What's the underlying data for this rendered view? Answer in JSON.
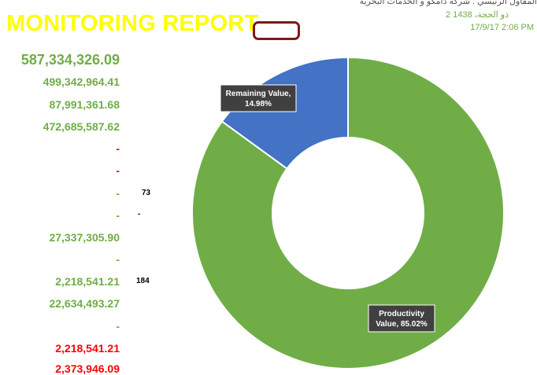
{
  "report": {
    "title": "MONITORING REPORT",
    "header_line1": "المقاول الرئيسي : شركة دامكو و الخدمات البحرية",
    "header_line2": "2 ذو الحجة، 1438",
    "header_line3": "17/9/17 2:06 PM"
  },
  "values": [
    {
      "text": "587,334,326.09",
      "style": "big"
    },
    {
      "text": "499,342,964.41",
      "style": "green"
    },
    {
      "text": "87,991,361.68",
      "style": "green"
    },
    {
      "text": "472,685,587.62",
      "style": "green"
    },
    {
      "text": "-",
      "style": "red"
    },
    {
      "text": "-",
      "style": "red"
    },
    {
      "text": "-",
      "style": "green"
    },
    {
      "text": "-",
      "style": "green"
    },
    {
      "text": "27,337,305.90",
      "style": "green"
    },
    {
      "text": "-",
      "style": "green"
    },
    {
      "text": "2,218,541.21",
      "style": "green"
    },
    {
      "text": "22,634,493.27",
      "style": "green"
    },
    {
      "text": "-",
      "style": "green"
    },
    {
      "text": "2,218,541.21",
      "style": "red"
    },
    {
      "text": "2,373,946.09",
      "style": "red"
    }
  ],
  "notes": [
    {
      "text": "73"
    },
    {
      "text": "-"
    },
    {
      "text": "184"
    }
  ],
  "chart_data": {
    "type": "pie",
    "variant": "doughnut",
    "slices": [
      {
        "name": "Productivity Value",
        "percent": 85.02,
        "color": "#70ad47",
        "label": "Productivity Value, 85.02%",
        "label_lines": [
          "Productivity",
          "Value, 85.02%"
        ]
      },
      {
        "name": "Remaining Value",
        "percent": 14.98,
        "color": "#4472c4",
        "label": "Remaining Value, 14.98%",
        "label_lines": [
          "Remaining Value,",
          "14.98%"
        ]
      }
    ]
  }
}
